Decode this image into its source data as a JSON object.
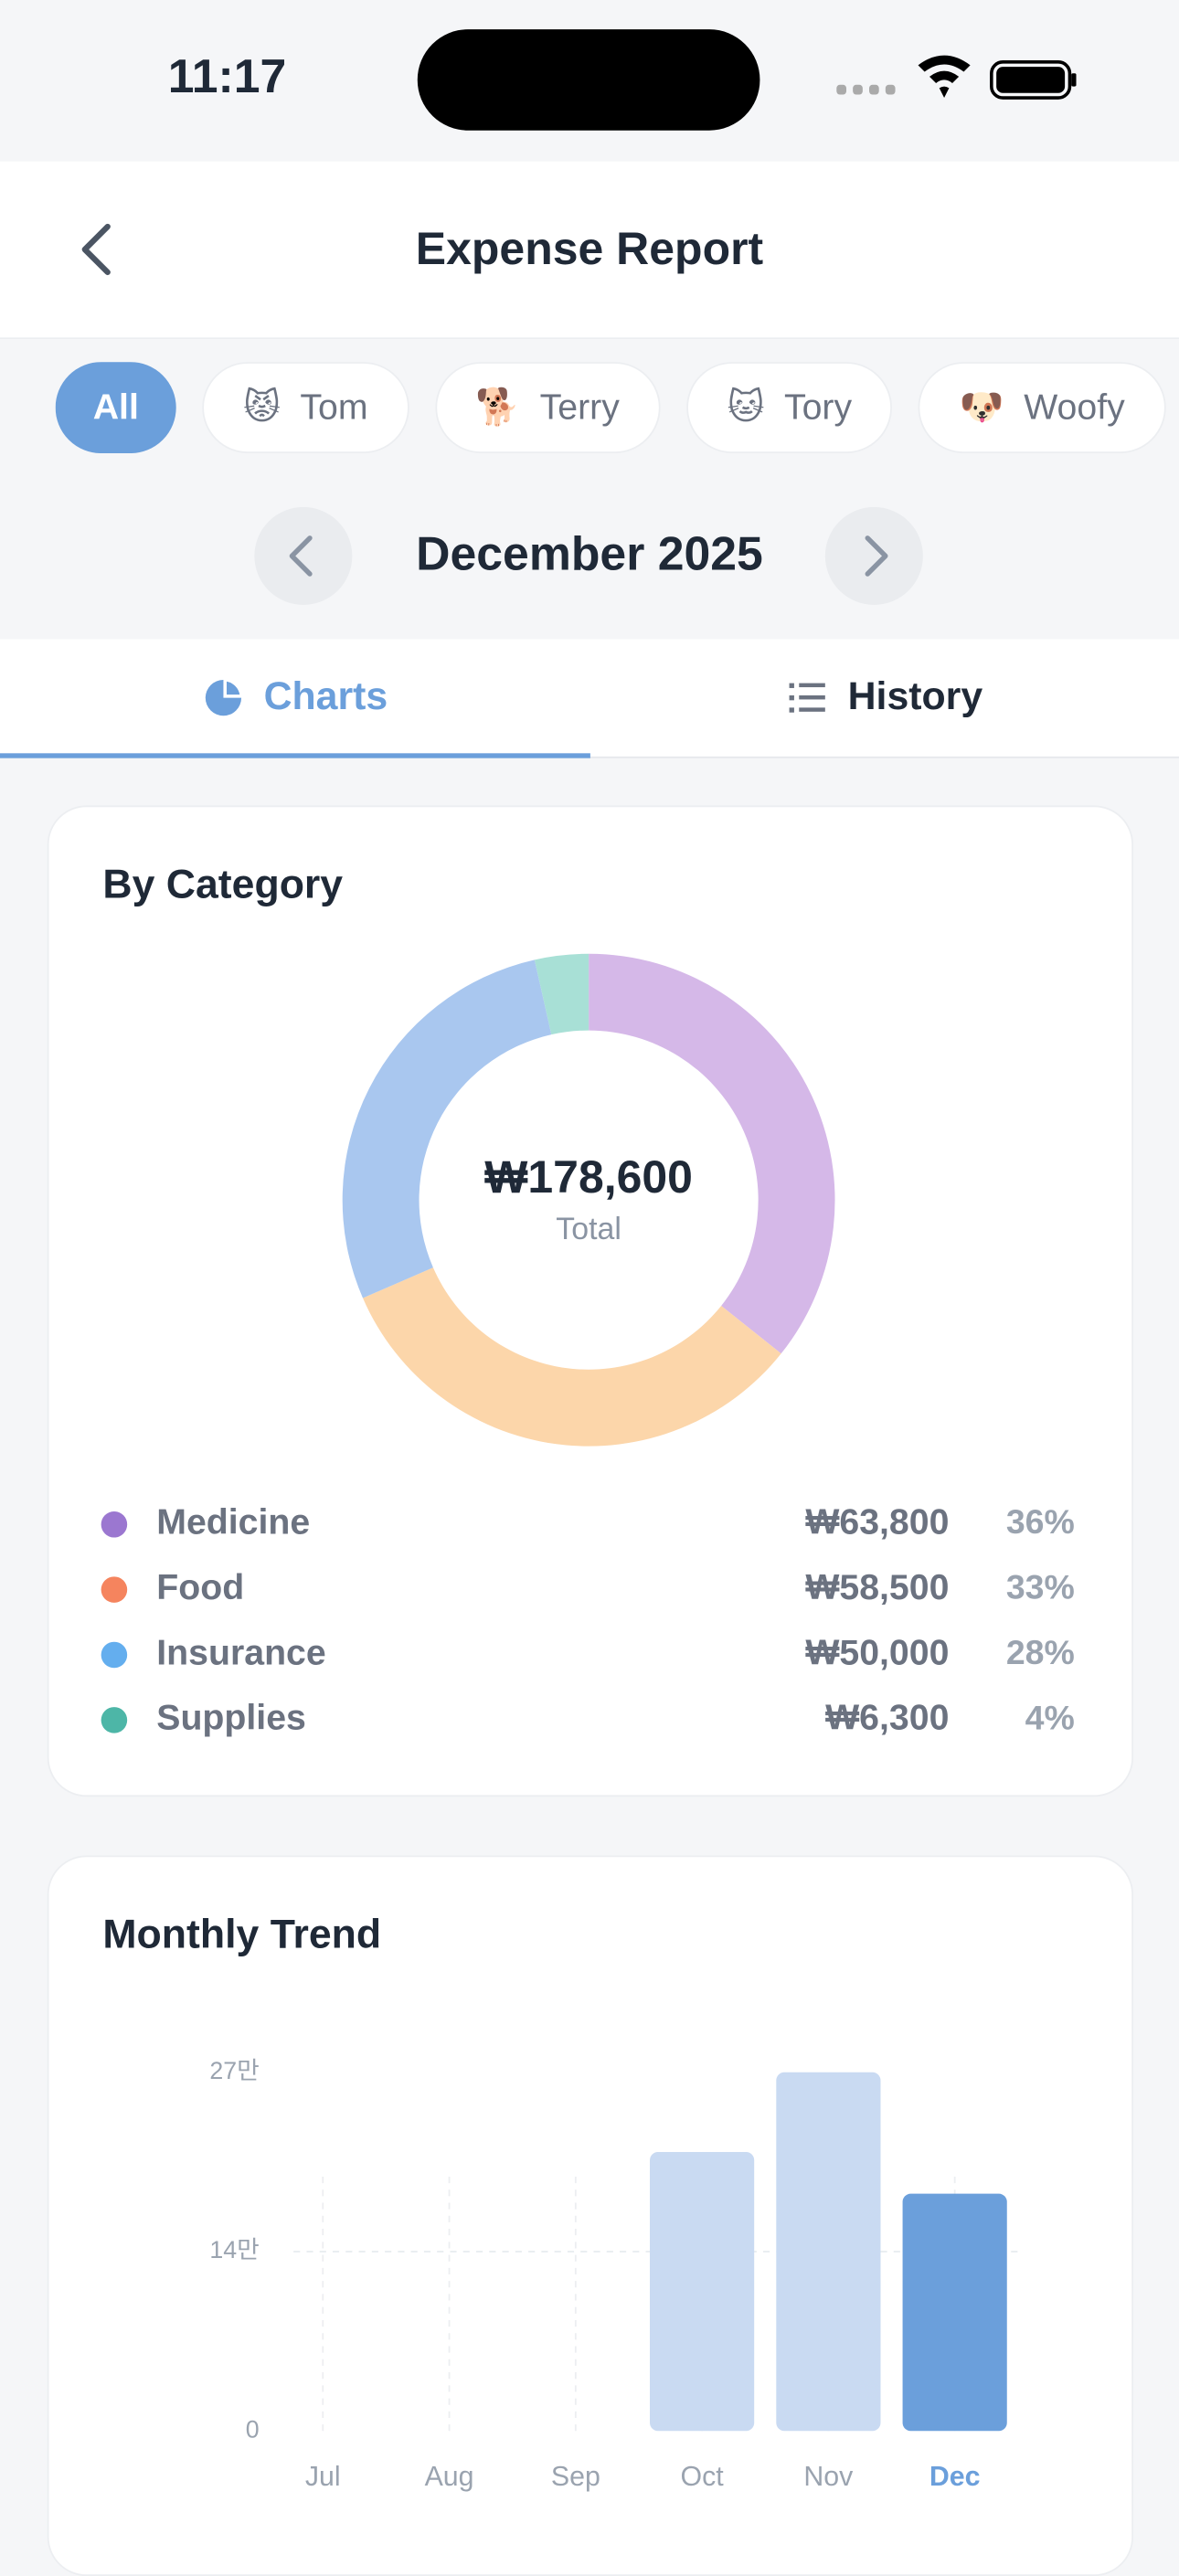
{
  "status_bar": {
    "time": "11:17"
  },
  "header": {
    "title": "Expense Report"
  },
  "filters": {
    "selected": 0,
    "items": [
      {
        "label": "All"
      },
      {
        "emoji": "😾",
        "label": "Tom"
      },
      {
        "emoji": "🐕",
        "label": "Terry"
      },
      {
        "emoji": "🐱",
        "label": "Tory"
      },
      {
        "emoji": "🐶",
        "label": "Woofy"
      }
    ]
  },
  "period": {
    "label": "December 2025"
  },
  "tabs": {
    "selected": 0,
    "items": [
      "Charts",
      "History"
    ]
  },
  "chart_data": [
    {
      "type": "donut",
      "title": "By Category",
      "categories": [
        "Medicine",
        "Food",
        "Insurance",
        "Supplies"
      ],
      "values": [
        63800,
        58500,
        50000,
        6300
      ],
      "value_labels": [
        "₩63,800",
        "₩58,500",
        "₩50,000",
        "₩6,300"
      ],
      "percents": [
        36,
        33,
        28,
        4
      ],
      "percent_labels": [
        "36%",
        "33%",
        "28%",
        "4%"
      ],
      "colors": [
        "#d5b8e8",
        "#fcd6aa",
        "#a9c7ef",
        "#a8e0d6"
      ],
      "legend_colors": [
        "#9b77d0",
        "#f5845e",
        "#64aeee",
        "#4db6a7"
      ],
      "total": 178600,
      "total_label": "₩178,600",
      "total_caption": "Total"
    },
    {
      "type": "bar",
      "title": "Monthly Trend",
      "categories": [
        "Jul",
        "Aug",
        "Sep",
        "Oct",
        "Nov",
        "Dec"
      ],
      "values": [
        0,
        0,
        0,
        210000,
        270000,
        178600
      ],
      "ylim": [
        0,
        270000
      ],
      "yticks": [
        0,
        {
          "value": 135000,
          "label": "14만"
        },
        {
          "value": 270000,
          "label": "27만"
        }
      ],
      "color": "#c9daf2",
      "highlight_index": 5,
      "highlight_color": "#6b9fdb",
      "grid": true
    }
  ]
}
